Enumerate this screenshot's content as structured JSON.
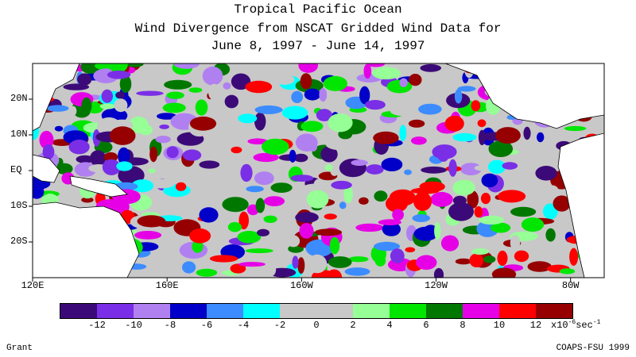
{
  "title": {
    "line1": "Tropical Pacific Ocean",
    "line2": "Wind Divergence from NSCAT Gridded Wind Data for",
    "line3": "June 8, 1997 - June 14, 1997"
  },
  "map": {
    "lon_range": [
      120,
      290
    ],
    "lat_range": [
      -30,
      30
    ],
    "lat_labels": [
      "20N",
      "10N",
      "EQ",
      "10S",
      "20S"
    ],
    "lat_values": [
      20,
      10,
      0,
      -10,
      -20
    ],
    "lon_labels": [
      "120E",
      "160E",
      "160W",
      "120W",
      "80W"
    ],
    "lon_values": [
      120,
      160,
      200,
      240,
      280
    ]
  },
  "colorbar": {
    "colors": [
      "#3c0a78",
      "#7a2ee6",
      "#b080f0",
      "#0000c8",
      "#3c8cff",
      "#00ffff",
      "#c8c8c8",
      "#c8c8c8",
      "#96ff96",
      "#00e600",
      "#007800",
      "#e600e6",
      "#ff0000",
      "#960000"
    ],
    "tick_labels": [
      "-12",
      "-10",
      "-8",
      "-6",
      "-4",
      "-2",
      "0",
      "2",
      "4",
      "6",
      "8",
      "10",
      "12"
    ],
    "units_prefix": "x10",
    "units_exp": "-6",
    "units_suffix": "sec",
    "units_exp2": "-1"
  },
  "credits": {
    "left": "Grant",
    "right": "COAPS-FSU 1999"
  }
}
